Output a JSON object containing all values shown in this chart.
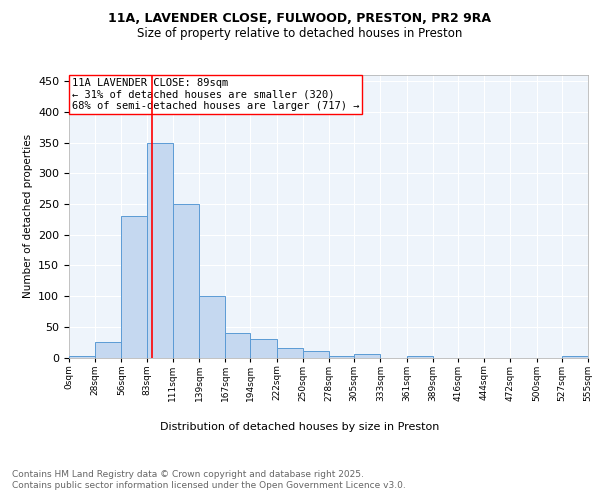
{
  "title_line1": "11A, LAVENDER CLOSE, FULWOOD, PRESTON, PR2 9RA",
  "title_line2": "Size of property relative to detached houses in Preston",
  "xlabel": "Distribution of detached houses by size in Preston",
  "ylabel": "Number of detached properties",
  "bar_edges": [
    0,
    28,
    56,
    83,
    111,
    139,
    167,
    194,
    222,
    250,
    278,
    305,
    333,
    361,
    389,
    416,
    444,
    472,
    500,
    527,
    555
  ],
  "bar_heights": [
    3,
    25,
    230,
    350,
    250,
    100,
    40,
    30,
    15,
    10,
    3,
    5,
    0,
    3,
    0,
    0,
    0,
    0,
    0,
    3
  ],
  "bar_color": "#c5d8f0",
  "bar_edgecolor": "#5b9bd5",
  "background_color": "#eef4fb",
  "grid_color": "#ffffff",
  "vline_x": 89,
  "vline_color": "red",
  "annotation_text": "11A LAVENDER CLOSE: 89sqm\n← 31% of detached houses are smaller (320)\n68% of semi-detached houses are larger (717) →",
  "annotation_box_edgecolor": "red",
  "annotation_fontsize": 7.5,
  "ylim": [
    0,
    460
  ],
  "yticks": [
    0,
    50,
    100,
    150,
    200,
    250,
    300,
    350,
    400,
    450
  ],
  "tick_labels": [
    "0sqm",
    "28sqm",
    "56sqm",
    "83sqm",
    "111sqm",
    "139sqm",
    "167sqm",
    "194sqm",
    "222sqm",
    "250sqm",
    "278sqm",
    "305sqm",
    "333sqm",
    "361sqm",
    "389sqm",
    "416sqm",
    "444sqm",
    "472sqm",
    "500sqm",
    "527sqm",
    "555sqm"
  ],
  "footnote_line1": "Contains HM Land Registry data © Crown copyright and database right 2025.",
  "footnote_line2": "Contains public sector information licensed under the Open Government Licence v3.0.",
  "footnote_fontsize": 6.5,
  "footnote_color": "#666666",
  "title_fontsize": 9,
  "subtitle_fontsize": 8.5
}
